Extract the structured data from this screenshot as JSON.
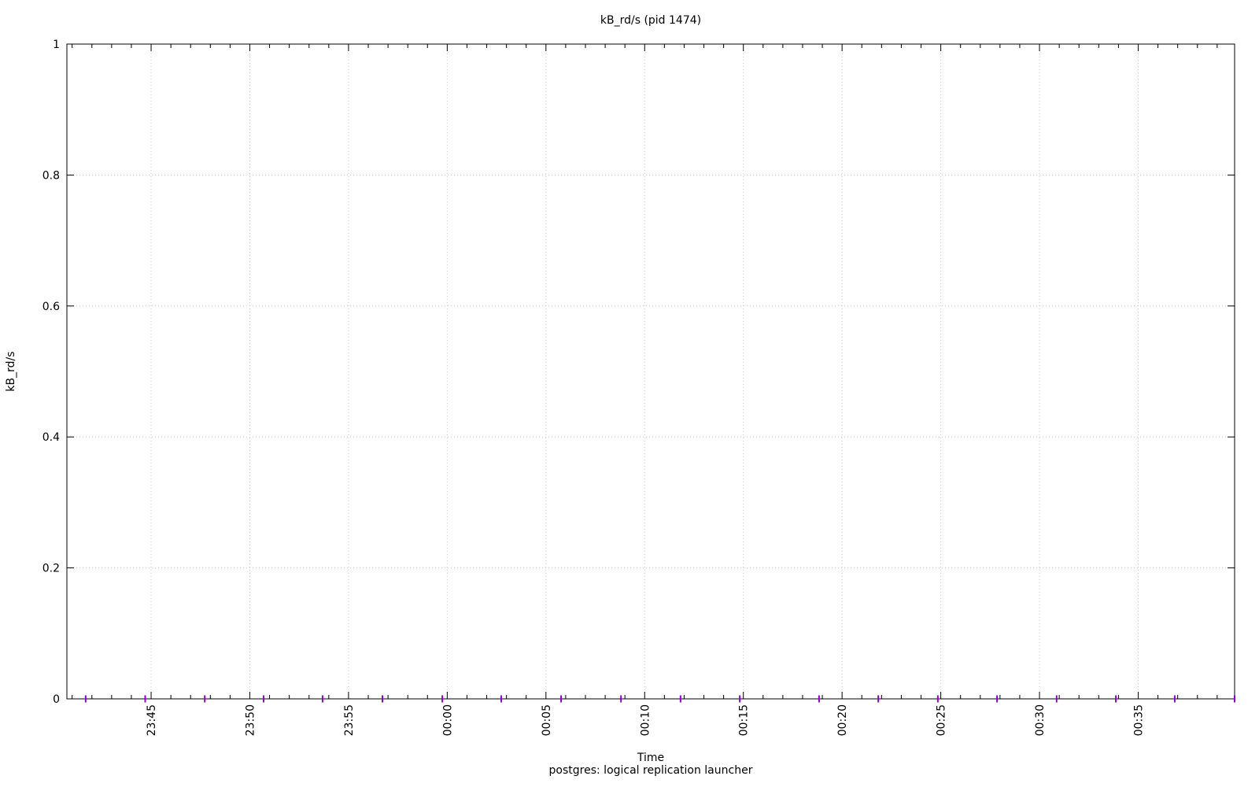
{
  "title": "kB_rd/s (pid 1474)",
  "caption": "postgres: logical replication launcher",
  "colors": {
    "background": "#ffffff",
    "axis": "#000000",
    "grid": "#c8c8c8"
  },
  "axes": {
    "x": {
      "label": "Time",
      "tick_labels": [
        "23:45",
        "23:50",
        "23:55",
        "00:00",
        "00:05",
        "00:10",
        "00:15",
        "00:20",
        "00:25",
        "00:30",
        "00:35"
      ],
      "minor_tick_minutes": 1,
      "major_tick_minutes": 5
    },
    "y": {
      "label": "kB_rd/s",
      "tick_labels": [
        "0",
        "0.2",
        "0.4",
        "0.6",
        "0.8",
        "1"
      ]
    }
  },
  "chart_data": {
    "type": "scatter",
    "title": "kB_rd/s (pid 1474)",
    "xlabel": "Time",
    "ylabel": "kB_rd/s",
    "xlim": [
      "23:40:44",
      "00:39:53"
    ],
    "ylim": [
      0,
      1
    ],
    "grid": true,
    "legend_position": "bottom-center",
    "marker_style": "vertical-tick",
    "series": [
      {
        "name": "postgres: logical replication launcher",
        "color": "#9400d3",
        "x": [
          "23:41:41",
          "23:44:42",
          "23:47:43",
          "23:50:42",
          "23:53:41",
          "23:56:43",
          "23:59:45",
          "00:02:44",
          "00:05:46",
          "00:08:48",
          "00:11:49",
          "00:14:49",
          "00:18:50",
          "00:21:50",
          "00:24:51",
          "00:27:51",
          "00:30:52",
          "00:33:52",
          "00:36:51",
          "00:39:53"
        ],
        "y": [
          0,
          0,
          0,
          0,
          0,
          0,
          0,
          0,
          0,
          0,
          0,
          0,
          0,
          0,
          0,
          0,
          0,
          0,
          0,
          0
        ]
      }
    ]
  }
}
